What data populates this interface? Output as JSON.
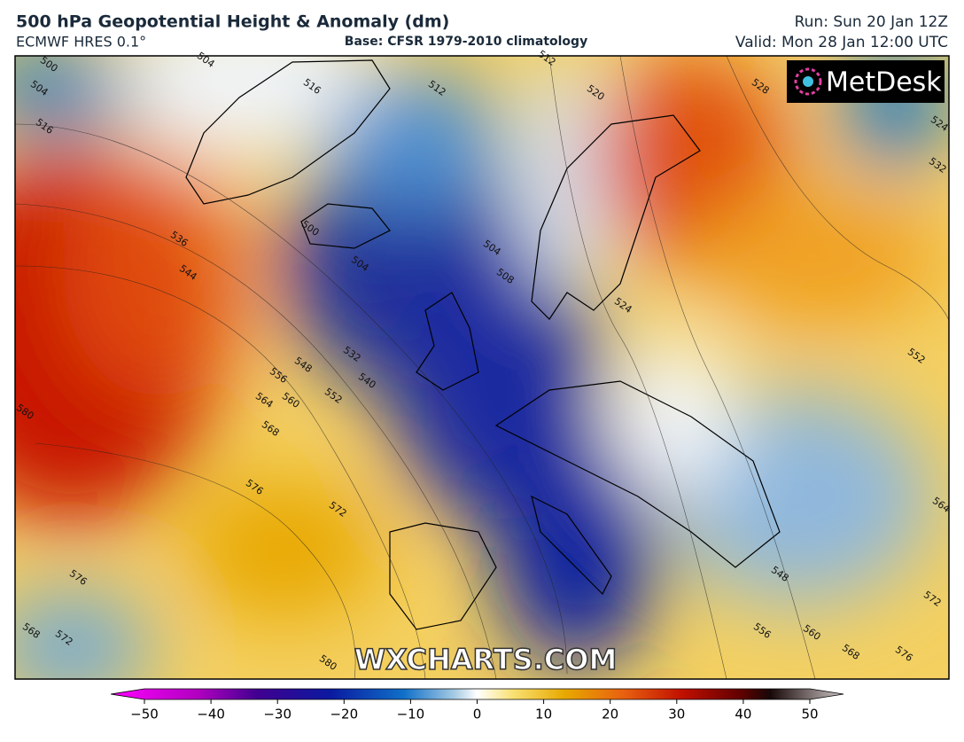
{
  "header": {
    "title": "500 hPa Geopotential Height & Anomaly (dm)",
    "model": "ECMWF HRES 0.1°",
    "base": "Base: CFSR 1979-2010 climatology",
    "run": "Run: Sun 20 Jan 12Z",
    "valid": "Valid: Mon 28 Jan 12:00 UTC"
  },
  "logo": "MetDesk",
  "watermark": "WXCHARTS.COM",
  "contour_labels": [
    "500",
    "504",
    "504",
    "516",
    "516",
    "512",
    "520",
    "528",
    "524",
    "532",
    "536",
    "544",
    "500",
    "504",
    "504",
    "508",
    "524",
    "532",
    "540",
    "548",
    "556",
    "552",
    "560",
    "564",
    "568",
    "580",
    "576",
    "572",
    "576",
    "568",
    "572",
    "580",
    "548",
    "556",
    "560",
    "568",
    "576",
    "564",
    "572",
    "552",
    "512"
  ],
  "colorbar": {
    "min": -50,
    "max": 50,
    "ticks": [
      {
        "value": -50,
        "label": "−50"
      },
      {
        "value": -40,
        "label": "−40"
      },
      {
        "value": -30,
        "label": "−30"
      },
      {
        "value": -20,
        "label": "−20"
      },
      {
        "value": -10,
        "label": "−10"
      },
      0,
      10,
      20,
      30,
      40,
      50
    ]
  }
}
